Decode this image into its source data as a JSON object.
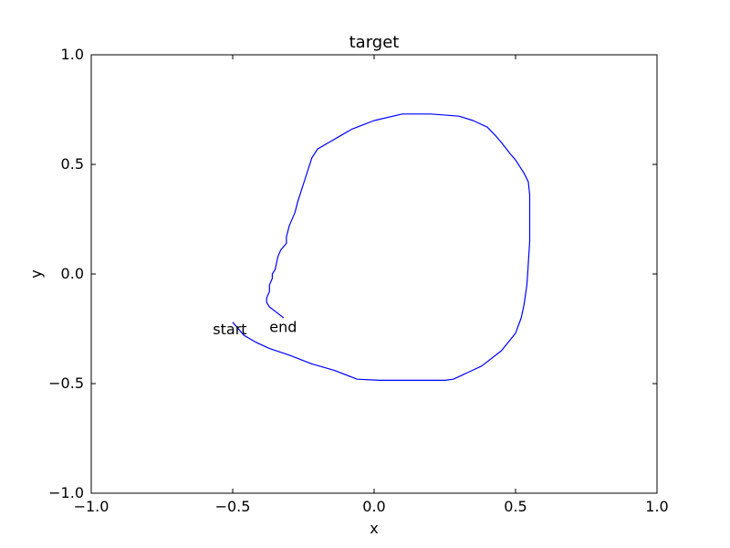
{
  "chart_data": {
    "type": "line",
    "title": "target",
    "xlabel": "x",
    "ylabel": "y",
    "xlim": [
      -1.0,
      1.0
    ],
    "ylim": [
      -1.0,
      1.0
    ],
    "grid": false,
    "x_ticks": [
      -1.0,
      -0.5,
      0.0,
      0.5,
      1.0
    ],
    "y_ticks": [
      -1.0,
      -0.5,
      0.0,
      0.5,
      1.0
    ],
    "x_tick_labels": [
      "−1.0",
      "−0.5",
      "0.0",
      "0.5",
      "1.0"
    ],
    "y_tick_labels": [
      "−1.0",
      "−0.5",
      "0.0",
      "0.5",
      "1.0"
    ],
    "series": [
      {
        "color": "#0000ff",
        "x": [
          -0.5,
          -0.46,
          -0.42,
          -0.37,
          -0.3,
          -0.22,
          -0.14,
          -0.06,
          0.02,
          0.1,
          0.18,
          0.25,
          0.28,
          0.33,
          0.38,
          0.45,
          0.5,
          0.52,
          0.53,
          0.54,
          0.545,
          0.55,
          0.55,
          0.545,
          0.53,
          0.52,
          0.5,
          0.48,
          0.45,
          0.43,
          0.4,
          0.35,
          0.3,
          0.2,
          0.1,
          0.0,
          -0.04,
          -0.08,
          -0.12,
          -0.16,
          -0.2,
          -0.21,
          -0.22,
          -0.24,
          -0.26,
          -0.27,
          -0.28,
          -0.3,
          -0.31,
          -0.31,
          -0.33,
          -0.34,
          -0.35,
          -0.36,
          -0.36,
          -0.37,
          -0.37,
          -0.38,
          -0.38,
          -0.37,
          -0.35,
          -0.32
        ],
        "y": [
          -0.22,
          -0.28,
          -0.31,
          -0.34,
          -0.37,
          -0.41,
          -0.44,
          -0.48,
          -0.485,
          -0.485,
          -0.485,
          -0.485,
          -0.48,
          -0.45,
          -0.42,
          -0.35,
          -0.27,
          -0.2,
          -0.14,
          -0.05,
          0.05,
          0.15,
          0.36,
          0.42,
          0.46,
          0.48,
          0.52,
          0.55,
          0.6,
          0.63,
          0.67,
          0.7,
          0.72,
          0.73,
          0.73,
          0.7,
          0.68,
          0.66,
          0.63,
          0.6,
          0.57,
          0.55,
          0.53,
          0.45,
          0.37,
          0.33,
          0.28,
          0.22,
          0.17,
          0.14,
          0.11,
          0.08,
          0.02,
          0.0,
          -0.02,
          -0.05,
          -0.08,
          -0.11,
          -0.13,
          -0.15,
          -0.17,
          -0.2
        ]
      }
    ],
    "annotations": [
      {
        "text": "start",
        "x": -0.57,
        "y": -0.25
      },
      {
        "text": "end",
        "x": -0.37,
        "y": -0.24
      }
    ]
  }
}
